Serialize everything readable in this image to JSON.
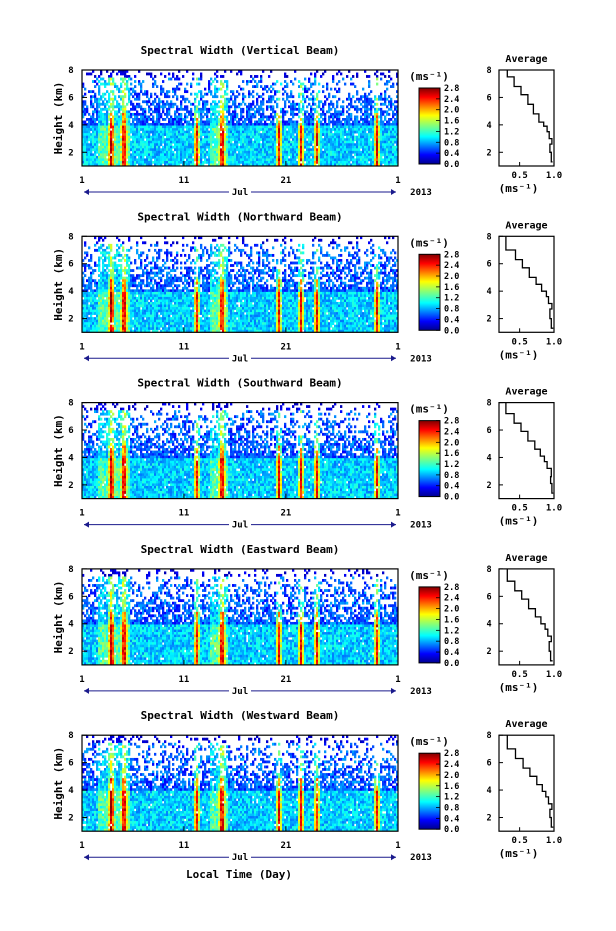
{
  "figure": {
    "bottom_xlabel": "Local Time (Day)",
    "avg_xlabel": "(ms⁻¹)",
    "cbar_unit": "(ms⁻¹)"
  },
  "chart_data": [
    {
      "type": "heatmap",
      "title": "Spectral Width (Vertical Beam)",
      "xlabel": "",
      "ylabel": "Height (km)",
      "x_ticks": [
        "1",
        "11",
        "21",
        "1"
      ],
      "x_range_label": "Jul",
      "year_label": "2013",
      "ylim": [
        1,
        8
      ],
      "y_ticks": [
        "2",
        "4",
        "6",
        "8"
      ],
      "colorbar": {
        "min": 0.0,
        "max": 2.8,
        "ticks": [
          "0.0",
          "0.4",
          "0.8",
          "1.2",
          "1.6",
          "2.0",
          "2.4",
          "2.8"
        ],
        "colormap": "jet"
      },
      "average_profile": {
        "title": "Average",
        "xlim": [
          0.2,
          1.0
        ],
        "x_ticks": [
          "0.5",
          "1.0"
        ],
        "ylim": [
          1,
          8
        ],
        "y_ticks": [
          "2",
          "4",
          "6",
          "8"
        ],
        "points": [
          [
            0.98,
            1.3
          ],
          [
            0.96,
            2.0
          ],
          [
            0.94,
            2.6
          ],
          [
            0.97,
            3.0
          ],
          [
            0.93,
            3.5
          ],
          [
            0.9,
            3.9
          ],
          [
            0.85,
            4.2
          ],
          [
            0.78,
            4.8
          ],
          [
            0.7,
            5.5
          ],
          [
            0.62,
            6.2
          ],
          [
            0.52,
            6.8
          ],
          [
            0.42,
            7.5
          ],
          [
            0.32,
            8.0
          ]
        ]
      }
    },
    {
      "type": "heatmap",
      "title": "Spectral Width (Northward Beam)",
      "xlabel": "",
      "ylabel": "Height (km)",
      "x_ticks": [
        "1",
        "11",
        "21",
        "1"
      ],
      "x_range_label": "Jul",
      "year_label": "2013",
      "ylim": [
        1,
        8
      ],
      "y_ticks": [
        "2",
        "4",
        "6",
        "8"
      ],
      "colorbar": {
        "min": 0.0,
        "max": 2.8,
        "ticks": [
          "0.0",
          "0.4",
          "0.8",
          "1.2",
          "1.6",
          "2.0",
          "2.4",
          "2.8"
        ],
        "colormap": "jet"
      },
      "average_profile": {
        "title": "Average",
        "xlim": [
          0.2,
          1.0
        ],
        "x_ticks": [
          "0.5",
          "1.0"
        ],
        "ylim": [
          1,
          8
        ],
        "y_ticks": [
          "2",
          "4",
          "6",
          "8"
        ],
        "points": [
          [
            0.99,
            1.3
          ],
          [
            0.96,
            2.0
          ],
          [
            0.94,
            2.7
          ],
          [
            0.97,
            3.1
          ],
          [
            0.92,
            3.6
          ],
          [
            0.89,
            4.0
          ],
          [
            0.82,
            4.5
          ],
          [
            0.74,
            5.0
          ],
          [
            0.64,
            5.7
          ],
          [
            0.54,
            6.3
          ],
          [
            0.44,
            7.0
          ],
          [
            0.3,
            8.0
          ]
        ]
      }
    },
    {
      "type": "heatmap",
      "title": "Spectral Width (Southward Beam)",
      "xlabel": "",
      "ylabel": "Height (km)",
      "x_ticks": [
        "1",
        "11",
        "21",
        "1"
      ],
      "x_range_label": "Jul",
      "year_label": "2013",
      "ylim": [
        1,
        8
      ],
      "y_ticks": [
        "2",
        "4",
        "6",
        "8"
      ],
      "colorbar": {
        "min": 0.0,
        "max": 2.8,
        "ticks": [
          "0.0",
          "0.4",
          "0.8",
          "1.2",
          "1.6",
          "2.0",
          "2.4",
          "2.8"
        ],
        "colormap": "jet"
      },
      "average_profile": {
        "title": "Average",
        "xlim": [
          0.2,
          1.0
        ],
        "x_ticks": [
          "0.5",
          "1.0"
        ],
        "ylim": [
          1,
          8
        ],
        "y_ticks": [
          "2",
          "4",
          "6",
          "8"
        ],
        "points": [
          [
            0.99,
            1.4
          ],
          [
            0.97,
            2.1
          ],
          [
            0.95,
            2.6
          ],
          [
            0.96,
            3.2
          ],
          [
            0.9,
            3.7
          ],
          [
            0.86,
            4.1
          ],
          [
            0.8,
            4.6
          ],
          [
            0.72,
            5.2
          ],
          [
            0.62,
            5.9
          ],
          [
            0.52,
            6.5
          ],
          [
            0.42,
            7.2
          ],
          [
            0.3,
            8.0
          ]
        ]
      }
    },
    {
      "type": "heatmap",
      "title": "Spectral Width (Eastward Beam)",
      "xlabel": "",
      "ylabel": "Height (km)",
      "x_ticks": [
        "1",
        "11",
        "21",
        "1"
      ],
      "x_range_label": "Jul",
      "year_label": "2013",
      "ylim": [
        1,
        8
      ],
      "y_ticks": [
        "2",
        "4",
        "6",
        "8"
      ],
      "colorbar": {
        "min": 0.0,
        "max": 2.8,
        "ticks": [
          "0.0",
          "0.4",
          "0.8",
          "1.2",
          "1.6",
          "2.0",
          "2.4",
          "2.8"
        ],
        "colormap": "jet"
      },
      "average_profile": {
        "title": "Average",
        "xlim": [
          0.2,
          1.0
        ],
        "x_ticks": [
          "0.5",
          "1.0"
        ],
        "ylim": [
          1,
          8
        ],
        "y_ticks": [
          "2",
          "4",
          "6",
          "8"
        ],
        "points": [
          [
            0.98,
            1.3
          ],
          [
            0.95,
            2.0
          ],
          [
            0.93,
            2.7
          ],
          [
            0.96,
            3.1
          ],
          [
            0.91,
            3.6
          ],
          [
            0.87,
            4.0
          ],
          [
            0.81,
            4.5
          ],
          [
            0.73,
            5.1
          ],
          [
            0.63,
            5.8
          ],
          [
            0.53,
            6.4
          ],
          [
            0.43,
            7.1
          ],
          [
            0.32,
            8.0
          ]
        ]
      }
    },
    {
      "type": "heatmap",
      "title": "Spectral Width (Westward Beam)",
      "xlabel": "Local Time (Day)",
      "ylabel": "Height (km)",
      "x_ticks": [
        "1",
        "11",
        "21",
        "1"
      ],
      "x_range_label": "Jul",
      "year_label": "2013",
      "ylim": [
        1,
        8
      ],
      "y_ticks": [
        "2",
        "4",
        "6",
        "8"
      ],
      "colorbar": {
        "min": 0.0,
        "max": 2.8,
        "ticks": [
          "0.0",
          "0.4",
          "0.8",
          "1.2",
          "1.6",
          "2.0",
          "2.4",
          "2.8"
        ],
        "colormap": "jet"
      },
      "average_profile": {
        "title": "Average",
        "xlim": [
          0.2,
          1.0
        ],
        "x_ticks": [
          "0.5",
          "1.0"
        ],
        "ylim": [
          1,
          8
        ],
        "y_ticks": [
          "2",
          "4",
          "6",
          "8"
        ],
        "points": [
          [
            0.99,
            1.3
          ],
          [
            0.96,
            2.0
          ],
          [
            0.94,
            2.6
          ],
          [
            0.97,
            3.0
          ],
          [
            0.92,
            3.5
          ],
          [
            0.88,
            3.9
          ],
          [
            0.83,
            4.4
          ],
          [
            0.75,
            5.0
          ],
          [
            0.65,
            5.6
          ],
          [
            0.55,
            6.3
          ],
          [
            0.44,
            7.0
          ],
          [
            0.32,
            8.0
          ]
        ]
      }
    }
  ]
}
